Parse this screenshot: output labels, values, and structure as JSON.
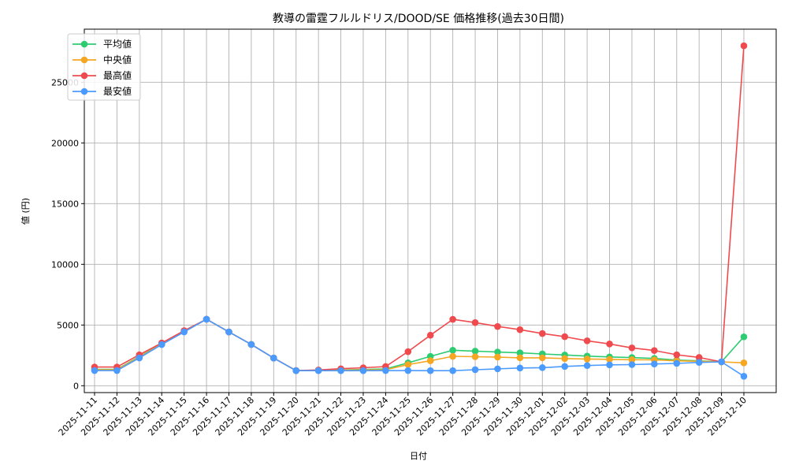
{
  "chart_data": {
    "type": "line",
    "title": "教導の雷霆フルルドリス/DOOD/SE 価格推移(過去30日間)",
    "xlabel": "日付",
    "ylabel": "値 (円)",
    "ylim": [
      -700,
      29400
    ],
    "yticks": [
      0,
      5000,
      10000,
      15000,
      20000,
      25000
    ],
    "grid": true,
    "legend_position": "upper left",
    "x": [
      "2025-11-11",
      "2025-11-12",
      "2025-11-13",
      "2025-11-14",
      "2025-11-15",
      "2025-11-16",
      "2025-11-17",
      "2025-11-18",
      "2025-11-19",
      "2025-11-20",
      "2025-11-21",
      "2025-11-22",
      "2025-11-23",
      "2025-11-24",
      "2025-11-25",
      "2025-11-26",
      "2025-11-27",
      "2025-11-28",
      "2025-11-29",
      "2025-11-30",
      "2025-12-01",
      "2025-12-02",
      "2025-12-03",
      "2025-12-04",
      "2025-12-05",
      "2025-12-06",
      "2025-12-07",
      "2025-12-08",
      "2025-12-09",
      "2025-12-10"
    ],
    "series": [
      {
        "name": "平均値",
        "color": "#2ecc71",
        "values": [
          1350,
          1350,
          2400,
          3450,
          4480,
          5480,
          4430,
          3400,
          2280,
          1250,
          1270,
          1300,
          1340,
          1380,
          1880,
          2420,
          2920,
          2850,
          2780,
          2710,
          2620,
          2530,
          2440,
          2370,
          2320,
          2250,
          2110,
          2050,
          1970,
          4030
        ]
      },
      {
        "name": "中央値",
        "color": "#f5a623",
        "values": [
          1320,
          1320,
          2360,
          3420,
          4450,
          5480,
          4430,
          3400,
          2280,
          1250,
          1260,
          1280,
          1300,
          1320,
          1740,
          2060,
          2420,
          2390,
          2360,
          2300,
          2300,
          2240,
          2200,
          2170,
          2140,
          2130,
          2050,
          2010,
          1970,
          1880
        ]
      },
      {
        "name": "最高値",
        "color": "#ef4b4f",
        "values": [
          1540,
          1540,
          2550,
          3520,
          4540,
          5480,
          4430,
          3400,
          2280,
          1250,
          1300,
          1400,
          1480,
          1580,
          2810,
          4160,
          5470,
          5200,
          4880,
          4620,
          4300,
          4040,
          3700,
          3440,
          3120,
          2900,
          2550,
          2330,
          1970,
          28000
        ]
      },
      {
        "name": "最安値",
        "color": "#4b9bff",
        "values": [
          1250,
          1250,
          2290,
          3390,
          4430,
          5480,
          4430,
          3400,
          2280,
          1240,
          1240,
          1240,
          1240,
          1250,
          1250,
          1240,
          1240,
          1320,
          1390,
          1460,
          1490,
          1590,
          1660,
          1720,
          1740,
          1790,
          1840,
          1920,
          1970,
          780
        ]
      }
    ]
  }
}
